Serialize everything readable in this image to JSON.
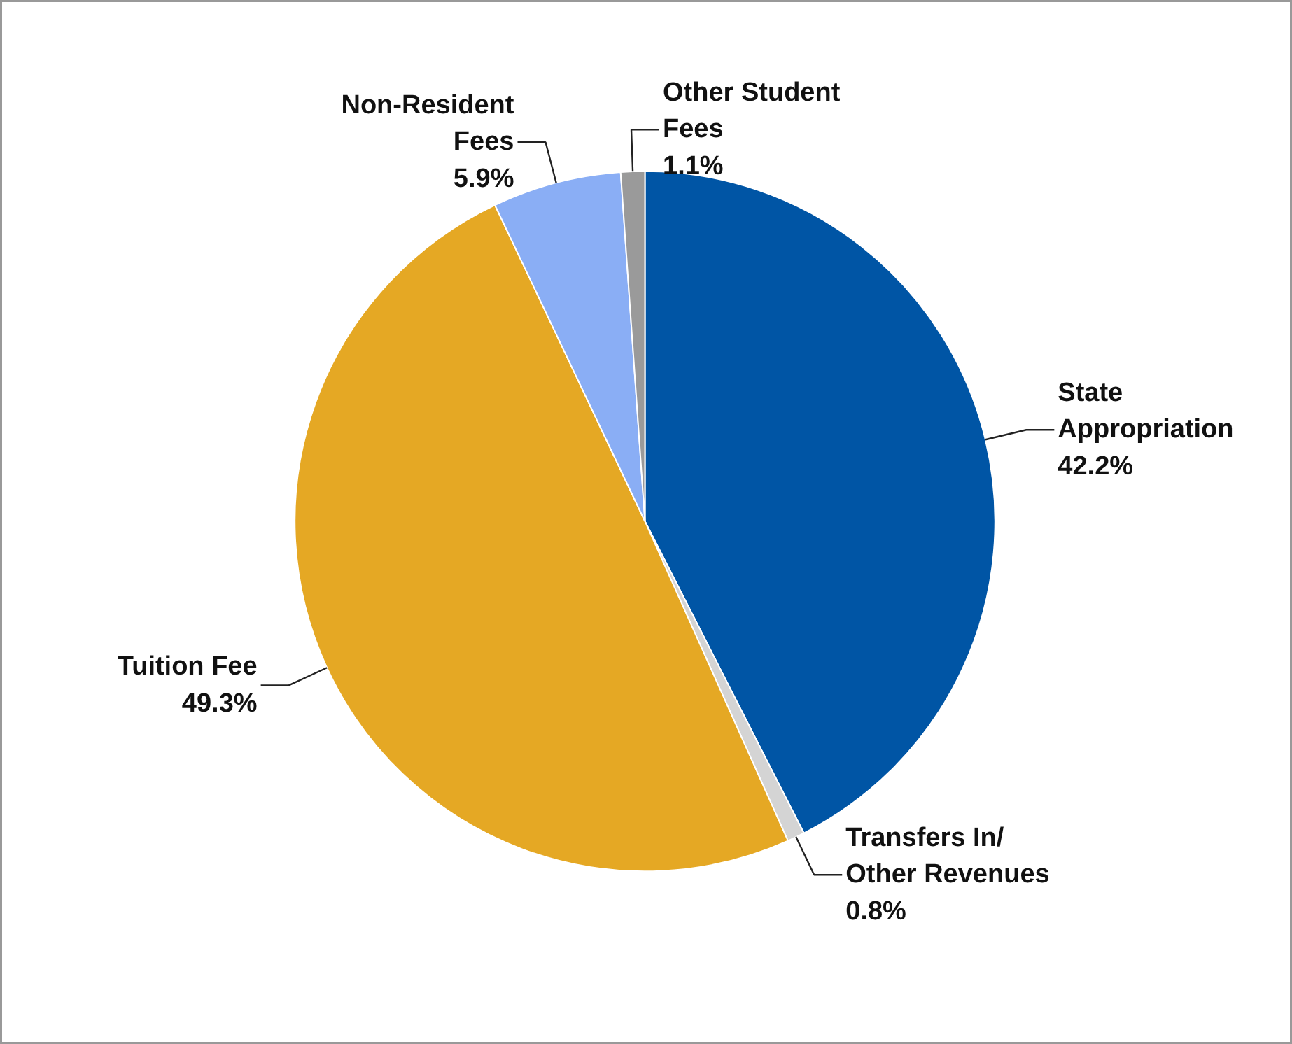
{
  "chart_data": {
    "type": "pie",
    "categories": [
      "State\nAppropriation",
      "Transfers In/\nOther Revenues",
      "Tuition Fee",
      "Non-Resident\nFees",
      "Other Student\nFees"
    ],
    "values": [
      42.2,
      0.8,
      49.3,
      5.9,
      1.1
    ],
    "colors": [
      "#0055a5",
      "#d4d4d4",
      "#e5a824",
      "#8aaef5",
      "#9a9a9a"
    ],
    "value_labels": [
      "42.2%",
      "0.8%",
      "49.3%",
      "5.9%",
      "1.1%"
    ]
  }
}
